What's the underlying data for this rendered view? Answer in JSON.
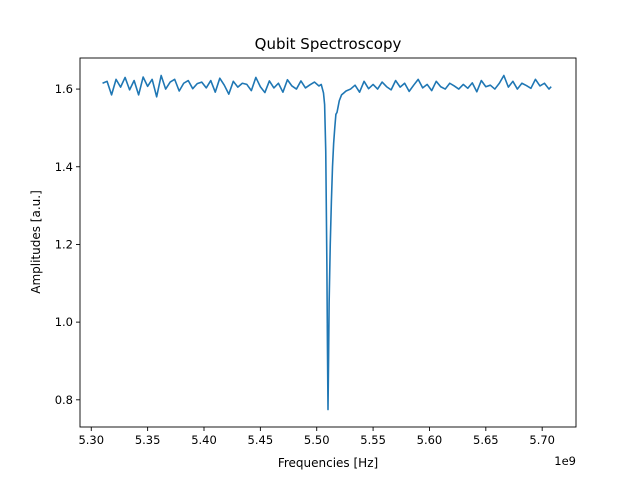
{
  "chart_data": {
    "type": "line",
    "title": "Qubit Spectroscopy",
    "xlabel": "Frequencies [Hz]",
    "ylabel": "Amplitudes [a.u.]",
    "x_offset_text": "1e9",
    "x_scale": 1000000000,
    "xlim": [
      5.29,
      5.73
    ],
    "ylim": [
      0.73,
      1.68
    ],
    "x_ticks": [
      5.3,
      5.35,
      5.4,
      5.45,
      5.5,
      5.55,
      5.6,
      5.65,
      5.7
    ],
    "x_tick_labels": [
      "5.30",
      "5.35",
      "5.40",
      "5.45",
      "5.50",
      "5.55",
      "5.60",
      "5.65",
      "5.70"
    ],
    "y_ticks": [
      0.8,
      1.0,
      1.2,
      1.4,
      1.6
    ],
    "y_tick_labels": [
      "0.8",
      "1.0",
      "1.2",
      "1.4",
      "1.6"
    ],
    "grid": false,
    "color": "#1f77b4",
    "series": [
      {
        "x": [
          5.31,
          5.314,
          5.318,
          5.322,
          5.326,
          5.33,
          5.334,
          5.338,
          5.342,
          5.346,
          5.35,
          5.354,
          5.358,
          5.362,
          5.366,
          5.37,
          5.374,
          5.378,
          5.382,
          5.386,
          5.39,
          5.394,
          5.398,
          5.402,
          5.406,
          5.41,
          5.414,
          5.418,
          5.422,
          5.426,
          5.43,
          5.434,
          5.438,
          5.442,
          5.446,
          5.45,
          5.454,
          5.458,
          5.462,
          5.466,
          5.47,
          5.474,
          5.478,
          5.482,
          5.486,
          5.49,
          5.494,
          5.498,
          5.502,
          5.504,
          5.506,
          5.507,
          5.508,
          5.509,
          5.5095,
          5.51,
          5.5105,
          5.511,
          5.512,
          5.513,
          5.514,
          5.515,
          5.516,
          5.517,
          5.518,
          5.519,
          5.52,
          5.522,
          5.524,
          5.526,
          5.53,
          5.534,
          5.538,
          5.542,
          5.546,
          5.55,
          5.554,
          5.558,
          5.562,
          5.566,
          5.57,
          5.574,
          5.578,
          5.582,
          5.586,
          5.59,
          5.594,
          5.598,
          5.602,
          5.606,
          5.61,
          5.614,
          5.618,
          5.622,
          5.626,
          5.63,
          5.634,
          5.638,
          5.642,
          5.646,
          5.65,
          5.654,
          5.658,
          5.662,
          5.666,
          5.67,
          5.674,
          5.678,
          5.682,
          5.686,
          5.69,
          5.694,
          5.698,
          5.702,
          5.706,
          5.708
        ],
        "y": [
          1.615,
          1.62,
          1.585,
          1.625,
          1.605,
          1.63,
          1.598,
          1.622,
          1.585,
          1.631,
          1.607,
          1.625,
          1.58,
          1.635,
          1.6,
          1.618,
          1.625,
          1.595,
          1.615,
          1.622,
          1.601,
          1.614,
          1.618,
          1.603,
          1.622,
          1.592,
          1.628,
          1.61,
          1.587,
          1.62,
          1.605,
          1.615,
          1.612,
          1.596,
          1.63,
          1.606,
          1.591,
          1.621,
          1.603,
          1.615,
          1.592,
          1.624,
          1.608,
          1.6,
          1.621,
          1.603,
          1.611,
          1.618,
          1.608,
          1.612,
          1.59,
          1.56,
          1.44,
          1.15,
          0.94,
          0.775,
          0.9,
          1.05,
          1.2,
          1.31,
          1.4,
          1.46,
          1.5,
          1.535,
          1.54,
          1.555,
          1.57,
          1.585,
          1.59,
          1.595,
          1.6,
          1.61,
          1.592,
          1.62,
          1.601,
          1.612,
          1.6,
          1.618,
          1.606,
          1.598,
          1.622,
          1.605,
          1.615,
          1.594,
          1.61,
          1.625,
          1.603,
          1.612,
          1.596,
          1.62,
          1.606,
          1.6,
          1.615,
          1.608,
          1.6,
          1.612,
          1.602,
          1.616,
          1.593,
          1.622,
          1.606,
          1.61,
          1.6,
          1.615,
          1.635,
          1.605,
          1.62,
          1.6,
          1.615,
          1.609,
          1.602,
          1.625,
          1.608,
          1.615,
          1.6,
          1.606
        ]
      }
    ]
  }
}
